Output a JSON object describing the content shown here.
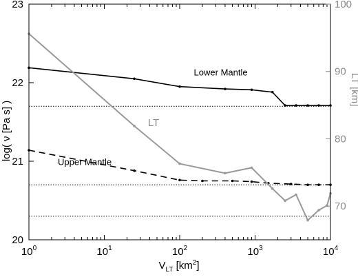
{
  "chart_data": {
    "type": "line",
    "title": "",
    "xlabel_main": "V",
    "xlabel_sub": "LT",
    "xlabel_unit": " [km",
    "xlabel_sup": "2",
    "xlabel_close": "]",
    "ylabel_left": "log( ν [Pa s] )",
    "ylabel_right": "LT [km]",
    "x_scale": "log",
    "xlim": [
      1,
      10000
    ],
    "ylim_left": [
      20,
      23
    ],
    "ylim_right": [
      65,
      100
    ],
    "x_tick_base": "10",
    "x_ticks": [
      {
        "value": 1,
        "base": "10",
        "exp": "0"
      },
      {
        "value": 10,
        "base": "10",
        "exp": "1"
      },
      {
        "value": 100,
        "base": "10",
        "exp": "2"
      },
      {
        "value": 1000,
        "base": "10",
        "exp": "3"
      },
      {
        "value": 10000,
        "base": "10",
        "exp": "4"
      }
    ],
    "y_left_ticks": [
      {
        "value": 20,
        "label": "20"
      },
      {
        "value": 21,
        "label": "21"
      },
      {
        "value": 22,
        "label": "22"
      },
      {
        "value": 23,
        "label": "23"
      }
    ],
    "y_right_ticks": [
      {
        "value": 70,
        "label": "70"
      },
      {
        "value": 80,
        "label": "80"
      },
      {
        "value": 90,
        "label": "90"
      },
      {
        "value": 100,
        "label": "100"
      }
    ],
    "grid": false,
    "series": [
      {
        "name": "Lower Mantle",
        "axis": "left",
        "color": "#000000",
        "style": "solid",
        "markers": true,
        "x": [
          1,
          25,
          100,
          400,
          900,
          1700,
          2500,
          3500,
          5000,
          7000,
          10000
        ],
        "y": [
          22.19,
          22.05,
          21.95,
          21.92,
          21.91,
          21.88,
          21.71,
          21.71,
          21.71,
          21.71,
          21.71
        ]
      },
      {
        "name": "Upper Mantle",
        "axis": "left",
        "color": "#000000",
        "style": "dashed",
        "markers": true,
        "x": [
          1,
          25,
          100,
          200,
          500,
          900,
          1500,
          3000,
          5000,
          7000,
          10000
        ],
        "y": [
          21.14,
          20.88,
          20.76,
          20.75,
          20.75,
          20.74,
          20.72,
          20.71,
          20.7,
          20.7,
          20.7
        ]
      },
      {
        "name": "LT",
        "axis": "right",
        "color": "#999999",
        "style": "solid",
        "markers": true,
        "x": [
          1,
          25,
          100,
          400,
          900,
          1700,
          2500,
          3500,
          5000,
          7000,
          9000,
          10000
        ],
        "y": [
          95.6,
          81.9,
          76.3,
          74.9,
          75.7,
          72.6,
          70.8,
          71.7,
          67.9,
          69.4,
          70.1,
          71.9
        ]
      }
    ],
    "reference_lines": [
      {
        "axis": "left",
        "y": 21.7,
        "style": "dotted"
      },
      {
        "axis": "left",
        "y": 20.7,
        "style": "dotted"
      },
      {
        "axis": "left",
        "y": 20.3,
        "style": "dotted"
      }
    ],
    "annotations": [
      {
        "text": "Lower Mantle",
        "x": 350,
        "y": 22.09
      },
      {
        "text": "Upper Mantle",
        "x": 5.5,
        "y": 20.95
      },
      {
        "text": "LT",
        "x": 45,
        "y": 81.9,
        "axis": "right"
      }
    ]
  }
}
